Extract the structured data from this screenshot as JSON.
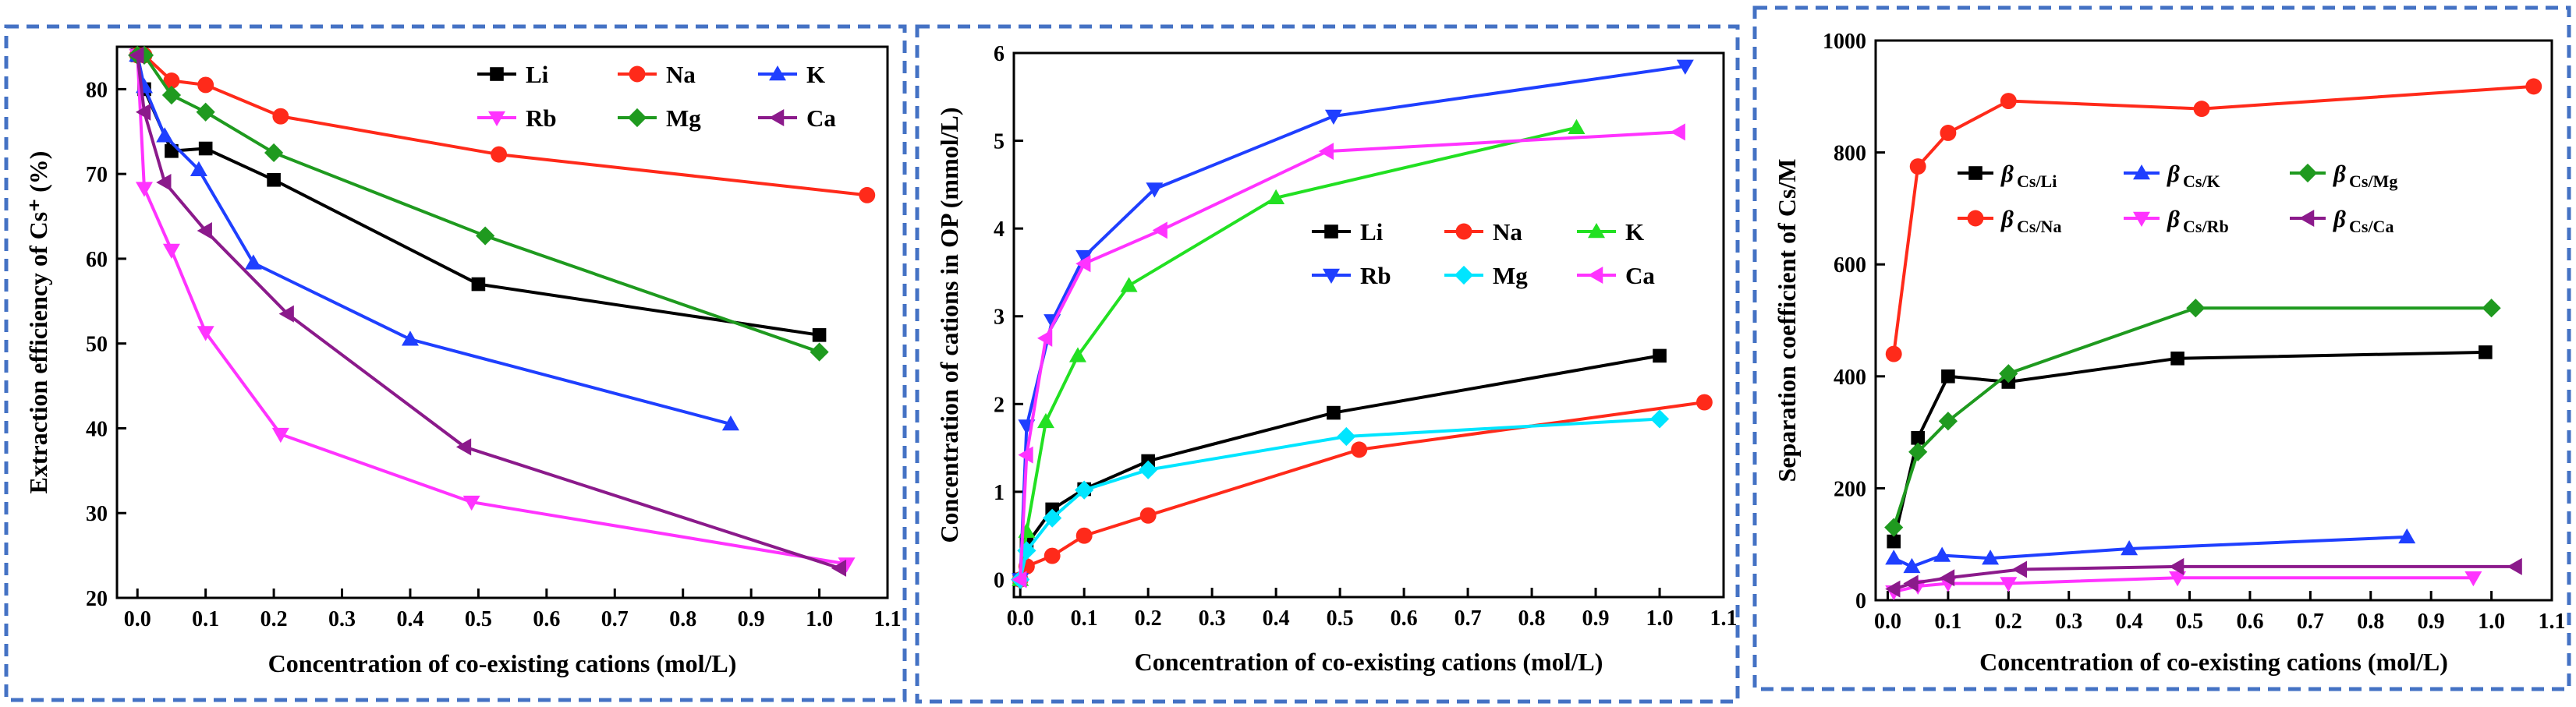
{
  "colors": {
    "Li": "#000000",
    "Na": "#ff2a1a",
    "K": "#1f3fff",
    "Rb": "#ff33ff",
    "Mg": "#1f9a1f",
    "Ca": "#8b1a8b",
    "K_mid": "#22e022",
    "Mg_mid": "#00e5ff",
    "frame": "#4472c4"
  },
  "chart_data": [
    {
      "type": "line",
      "xlabel": "Concentration of co-existing cations (mol/L)",
      "ylabel": "Extraction efficiency of Cs⁺ (%)",
      "xlim": [
        -0.03,
        1.1
      ],
      "ylim": [
        20,
        85
      ],
      "xticks": [
        0.0,
        0.1,
        0.2,
        0.3,
        0.4,
        0.5,
        0.6,
        0.7,
        0.8,
        0.9,
        1.0,
        1.1
      ],
      "xtick_labels": [
        "0.0",
        "0.1",
        "0.2",
        "0.3",
        "0.4",
        "0.5",
        "0.6",
        "0.7",
        "0.8",
        "0.9",
        "1.0",
        "1.1"
      ],
      "yticks": [
        20,
        30,
        40,
        50,
        60,
        70,
        80
      ],
      "ytick_labels": [
        "20",
        "30",
        "40",
        "50",
        "60",
        "70",
        "80"
      ],
      "legend_position": "top-right",
      "legend_columns": 3,
      "series": [
        {
          "name": "Li",
          "color_key": "Li",
          "marker": "square",
          "x": [
            0,
            0.01,
            0.05,
            0.1,
            0.2,
            0.5,
            1.0
          ],
          "y": [
            84,
            80,
            72.7,
            73,
            69.3,
            57,
            51
          ]
        },
        {
          "name": "Na",
          "color_key": "Na",
          "marker": "circle",
          "x": [
            0,
            0.01,
            0.05,
            0.1,
            0.21,
            0.53,
            1.07
          ],
          "y": [
            84,
            84,
            81,
            80.5,
            76.8,
            72.3,
            67.5
          ]
        },
        {
          "name": "K",
          "color_key": "K",
          "marker": "triangle-up",
          "x": [
            0,
            0.01,
            0.04,
            0.09,
            0.17,
            0.4,
            0.87
          ],
          "y": [
            84,
            80.3,
            74.5,
            70.5,
            59.5,
            50.5,
            40.5
          ]
        },
        {
          "name": "Rb",
          "color_key": "Rb",
          "marker": "triangle-down",
          "x": [
            0,
            0.01,
            0.05,
            0.1,
            0.21,
            0.49,
            1.04
          ],
          "y": [
            84,
            68.3,
            61,
            51.3,
            39.3,
            31.3,
            24
          ]
        },
        {
          "name": "Mg",
          "color_key": "Mg",
          "marker": "diamond",
          "x": [
            0,
            0.01,
            0.05,
            0.1,
            0.2,
            0.51,
            1.0
          ],
          "y": [
            84,
            84,
            79.3,
            77.3,
            72.5,
            62.7,
            49
          ]
        },
        {
          "name": "Ca",
          "color_key": "Ca",
          "marker": "triangle-left",
          "x": [
            0,
            0.01,
            0.04,
            0.1,
            0.22,
            0.48,
            1.03
          ],
          "y": [
            84,
            77.3,
            69,
            63.3,
            53.5,
            37.8,
            23.5
          ]
        }
      ]
    },
    {
      "type": "line",
      "xlabel": "Concentration of co-existing cations (mol/L)",
      "ylabel": "Concentration of cations in OP (mmol/L)",
      "xlim": [
        -0.01,
        1.1
      ],
      "ylim": [
        -0.2,
        6
      ],
      "xticks": [
        0.0,
        0.1,
        0.2,
        0.3,
        0.4,
        0.5,
        0.6,
        0.7,
        0.8,
        0.9,
        1.0,
        1.1
      ],
      "xtick_labels": [
        "0.0",
        "0.1",
        "0.2",
        "0.3",
        "0.4",
        "0.5",
        "0.6",
        "0.7",
        "0.8",
        "0.9",
        "1.0",
        "1.1"
      ],
      "yticks": [
        0,
        1,
        2,
        3,
        4,
        5,
        6
      ],
      "ytick_labels": [
        "0",
        "1",
        "2",
        "3",
        "4",
        "5",
        "6"
      ],
      "legend_position": "center-right",
      "legend_columns": 3,
      "series": [
        {
          "name": "Li",
          "color_key": "Li",
          "marker": "square",
          "x": [
            0,
            0.01,
            0.05,
            0.1,
            0.2,
            0.49,
            1.0
          ],
          "y": [
            0,
            0.4,
            0.8,
            1.03,
            1.35,
            1.9,
            2.55
          ]
        },
        {
          "name": "Na",
          "color_key": "Na",
          "marker": "circle",
          "x": [
            0,
            0.01,
            0.05,
            0.1,
            0.2,
            0.53,
            1.07
          ],
          "y": [
            0,
            0.15,
            0.27,
            0.5,
            0.73,
            1.48,
            2.02
          ]
        },
        {
          "name": "K",
          "color_key": "K_mid",
          "marker": "triangle-up",
          "x": [
            0,
            0.01,
            0.04,
            0.09,
            0.17,
            0.4,
            0.87
          ],
          "y": [
            0,
            0.55,
            1.8,
            2.55,
            3.35,
            4.35,
            5.15
          ]
        },
        {
          "name": "Rb",
          "color_key": "K",
          "marker": "triangle-down",
          "x": [
            0,
            0.01,
            0.05,
            0.1,
            0.21,
            0.49,
            1.04
          ],
          "y": [
            0,
            1.75,
            2.95,
            3.68,
            4.45,
            5.28,
            5.85
          ]
        },
        {
          "name": "Mg",
          "color_key": "Mg_mid",
          "marker": "diamond",
          "x": [
            0,
            0.01,
            0.05,
            0.1,
            0.2,
            0.51,
            1.0
          ],
          "y": [
            0,
            0.33,
            0.7,
            1.02,
            1.25,
            1.63,
            1.83
          ]
        },
        {
          "name": "Ca",
          "color_key": "Rb",
          "marker": "triangle-left",
          "x": [
            0,
            0.01,
            0.04,
            0.1,
            0.22,
            0.48,
            1.03
          ],
          "y": [
            0,
            1.42,
            2.75,
            3.6,
            3.98,
            4.88,
            5.1
          ]
        }
      ]
    },
    {
      "type": "line",
      "xlabel": "Concentration of co-existing cations (mol/L)",
      "ylabel": "Separation coefficient of Cs/M",
      "xlim": [
        -0.02,
        1.1
      ],
      "ylim": [
        0,
        1000
      ],
      "xticks": [
        0.0,
        0.1,
        0.2,
        0.3,
        0.4,
        0.5,
        0.6,
        0.7,
        0.8,
        0.9,
        1.0,
        1.1
      ],
      "xtick_labels": [
        "0.0",
        "0.1",
        "0.2",
        "0.3",
        "0.4",
        "0.5",
        "0.6",
        "0.7",
        "0.8",
        "0.9",
        "1.0",
        "1.1"
      ],
      "yticks": [
        0,
        200,
        400,
        600,
        800,
        1000
      ],
      "ytick_labels": [
        "0",
        "200",
        "400",
        "600",
        "800",
        "1000"
      ],
      "legend_position": "upper-left",
      "legend_columns": 3,
      "legend_symbol": "β",
      "series": [
        {
          "name": "Cs/Li",
          "color_key": "Li",
          "marker": "square",
          "x": [
            0.01,
            0.05,
            0.1,
            0.2,
            0.48,
            0.99
          ],
          "y": [
            105,
            290,
            400,
            390,
            432,
            443
          ]
        },
        {
          "name": "Cs/K",
          "color_key": "K",
          "marker": "triangle-up",
          "x": [
            0.01,
            0.04,
            0.09,
            0.17,
            0.4,
            0.86
          ],
          "y": [
            75,
            60,
            80,
            75,
            92,
            113
          ]
        },
        {
          "name": "Cs/Mg",
          "color_key": "Mg",
          "marker": "diamond",
          "x": [
            0.01,
            0.05,
            0.1,
            0.2,
            0.51,
            1.0
          ],
          "y": [
            130,
            265,
            320,
            405,
            522,
            522
          ]
        },
        {
          "name": "Cs/Na",
          "color_key": "Na",
          "marker": "circle",
          "x": [
            0.01,
            0.05,
            0.1,
            0.2,
            0.52,
            1.07
          ],
          "y": [
            440,
            775,
            835,
            892,
            878,
            918
          ]
        },
        {
          "name": "Cs/Rb",
          "color_key": "Rb",
          "marker": "triangle-down",
          "x": [
            0.01,
            0.05,
            0.1,
            0.2,
            0.48,
            0.97
          ],
          "y": [
            15,
            25,
            30,
            30,
            40,
            40
          ]
        },
        {
          "name": "Cs/Ca",
          "color_key": "Ca",
          "marker": "triangle-left",
          "x": [
            0.01,
            0.04,
            0.1,
            0.22,
            0.48,
            1.04
          ],
          "y": [
            20,
            30,
            40,
            55,
            60,
            60
          ]
        }
      ]
    }
  ]
}
